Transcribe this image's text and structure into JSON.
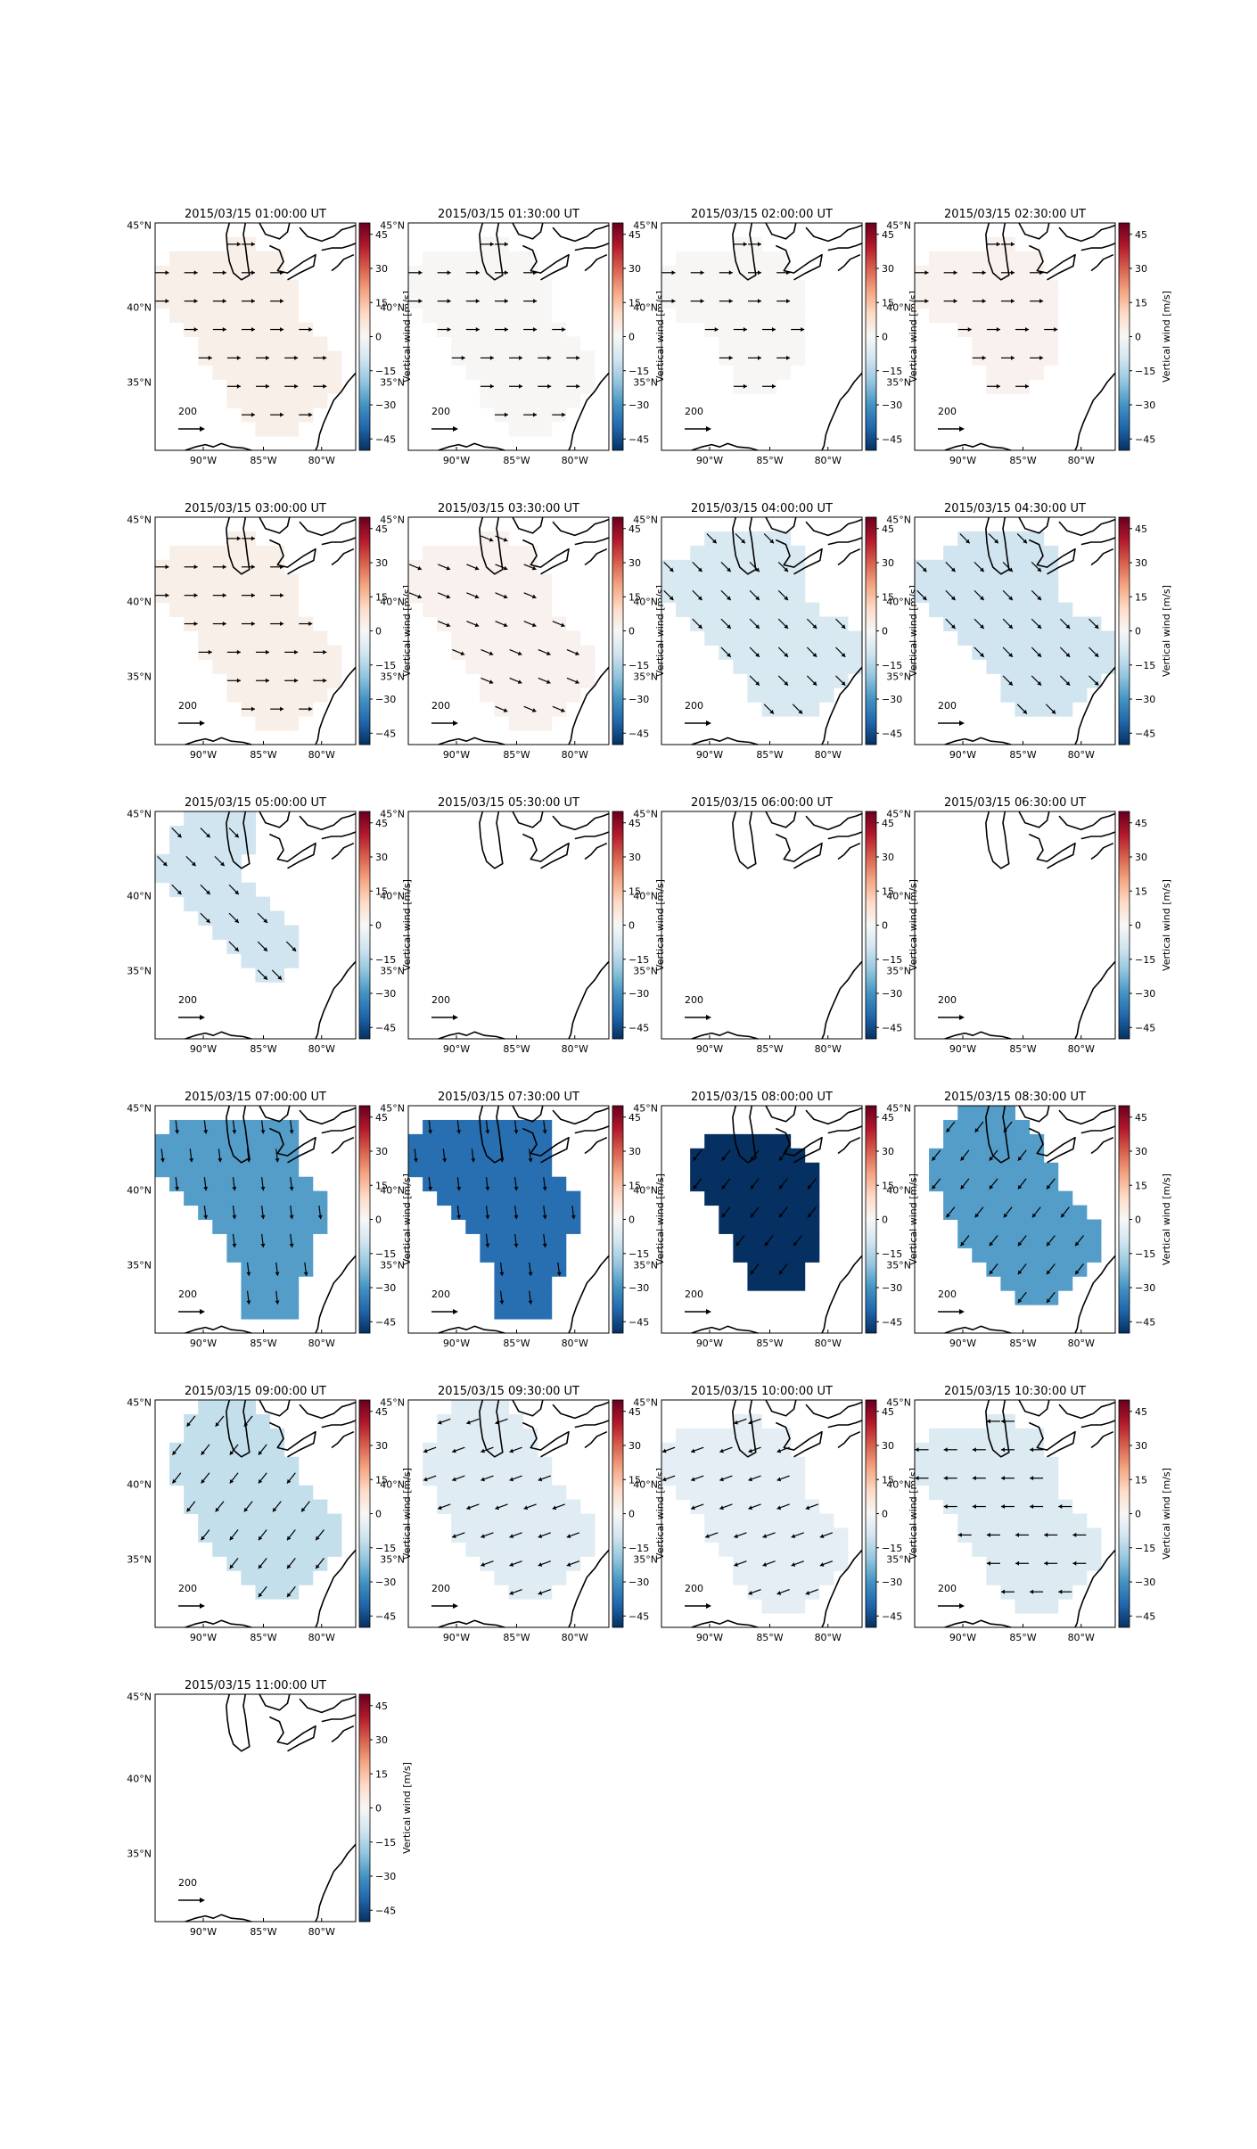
{
  "figure": {
    "colorbar_label": "Vertical wind [m/s]",
    "colorbar_ticks": [
      "45",
      "30",
      "15",
      "0",
      "−15",
      "−30",
      "−45"
    ],
    "colorbar_tick_values": [
      45,
      30,
      15,
      0,
      -15,
      -30,
      -45
    ],
    "colorbar_range": [
      -50,
      50
    ],
    "colormap": [
      "#67001f",
      "#b2182b",
      "#d6604d",
      "#f4a582",
      "#fddbc7",
      "#f7f7f7",
      "#d1e5f0",
      "#92c5de",
      "#4393c3",
      "#2166ac",
      "#053061"
    ],
    "lat_labels": [
      "45°N",
      "40°N",
      "35°N"
    ],
    "lon_labels": [
      "90°W",
      "85°W",
      "80°W"
    ],
    "scale_label": "200",
    "coastline_color": "#000000",
    "arrow_color": "#000000"
  },
  "chart_data": [
    {
      "type": "heatmap",
      "title": "2015/03/15 01:00:00 UT",
      "vertical_wind": 3,
      "shape": "A",
      "arrow_direction": "east",
      "has_data": true
    },
    {
      "type": "heatmap",
      "title": "2015/03/15 01:30:00 UT",
      "vertical_wind": 0.5,
      "shape": "A",
      "arrow_direction": "east",
      "has_data": true
    },
    {
      "type": "heatmap",
      "title": "2015/03/15 02:00:00 UT",
      "vertical_wind": 0.5,
      "shape": "B",
      "arrow_direction": "east",
      "has_data": true
    },
    {
      "type": "heatmap",
      "title": "2015/03/15 02:30:00 UT",
      "vertical_wind": 2,
      "shape": "B",
      "arrow_direction": "east",
      "has_data": true
    },
    {
      "type": "heatmap",
      "title": "2015/03/15 03:00:00 UT",
      "vertical_wind": 3,
      "shape": "A",
      "arrow_direction": "east",
      "has_data": true
    },
    {
      "type": "heatmap",
      "title": "2015/03/15 03:30:00 UT",
      "vertical_wind": 2,
      "shape": "A",
      "arrow_direction": "east-southeast",
      "has_data": true
    },
    {
      "type": "heatmap",
      "title": "2015/03/15 04:00:00 UT",
      "vertical_wind": -8,
      "shape": "C",
      "arrow_direction": "southeast",
      "has_data": true
    },
    {
      "type": "heatmap",
      "title": "2015/03/15 04:30:00 UT",
      "vertical_wind": -10,
      "shape": "C",
      "arrow_direction": "southeast",
      "has_data": true
    },
    {
      "type": "heatmap",
      "title": "2015/03/15 05:00:00 UT",
      "vertical_wind": -10,
      "shape": "D",
      "arrow_direction": "southeast",
      "has_data": true
    },
    {
      "type": "heatmap",
      "title": "2015/03/15 05:30:00 UT",
      "has_data": false
    },
    {
      "type": "heatmap",
      "title": "2015/03/15 06:00:00 UT",
      "has_data": false
    },
    {
      "type": "heatmap",
      "title": "2015/03/15 06:30:00 UT",
      "has_data": false
    },
    {
      "type": "heatmap",
      "title": "2015/03/15 07:00:00 UT",
      "vertical_wind": -28,
      "shape": "E",
      "arrow_direction": "south",
      "has_data": true
    },
    {
      "type": "heatmap",
      "title": "2015/03/15 07:30:00 UT",
      "vertical_wind": -38,
      "shape": "E",
      "arrow_direction": "south",
      "has_data": true
    },
    {
      "type": "heatmap",
      "title": "2015/03/15 08:00:00 UT",
      "vertical_wind": -50,
      "shape": "F",
      "arrow_direction": "southwest",
      "has_data": true
    },
    {
      "type": "heatmap",
      "title": "2015/03/15 08:30:00 UT",
      "vertical_wind": -28,
      "shape": "G",
      "arrow_direction": "southwest",
      "has_data": true
    },
    {
      "type": "heatmap",
      "title": "2015/03/15 09:00:00 UT",
      "vertical_wind": -12,
      "shape": "G",
      "arrow_direction": "southwest",
      "has_data": true
    },
    {
      "type": "heatmap",
      "title": "2015/03/15 09:30:00 UT",
      "vertical_wind": -6,
      "shape": "G",
      "arrow_direction": "west-southwest",
      "has_data": true
    },
    {
      "type": "heatmap",
      "title": "2015/03/15 10:00:00 UT",
      "vertical_wind": -5,
      "shape": "A",
      "arrow_direction": "west-southwest",
      "has_data": true
    },
    {
      "type": "heatmap",
      "title": "2015/03/15 10:30:00 UT",
      "vertical_wind": -7,
      "shape": "A",
      "arrow_direction": "west",
      "has_data": true
    },
    {
      "type": "heatmap",
      "title": "2015/03/15 11:00:00 UT",
      "has_data": false
    }
  ]
}
